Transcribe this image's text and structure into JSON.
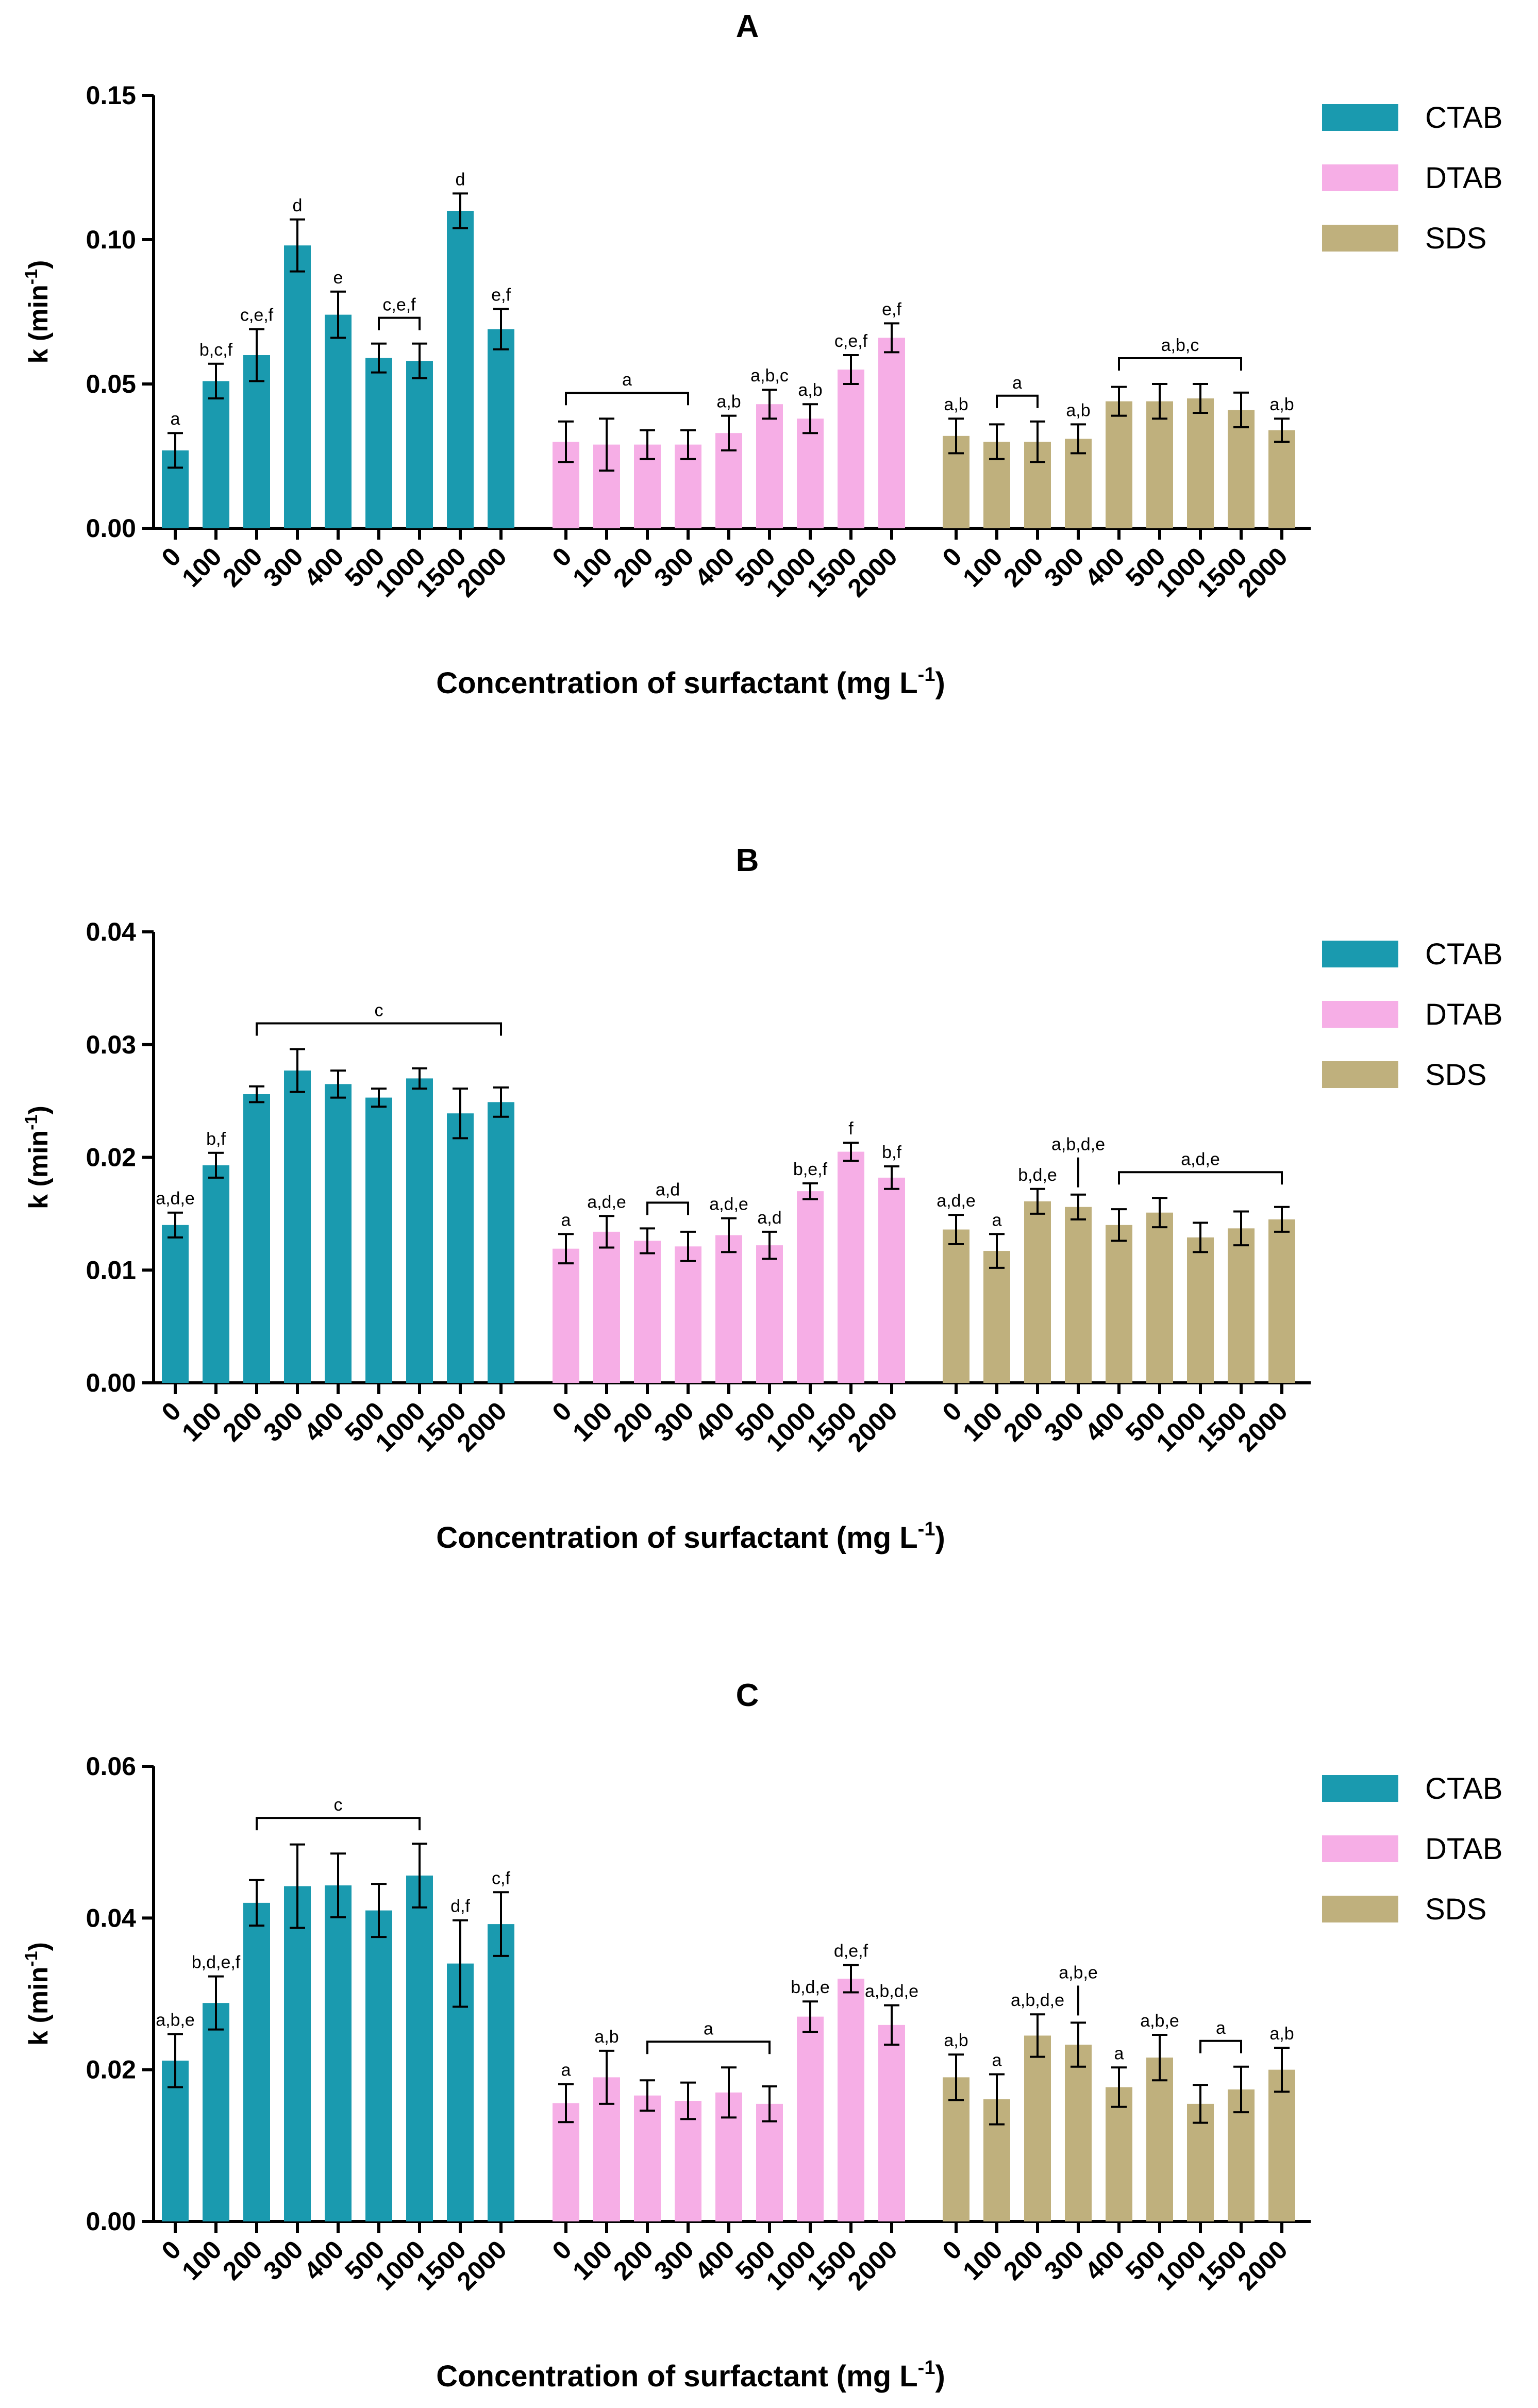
{
  "colors": {
    "CTAB": "#1a9aaf",
    "DTAB": "#f6aee6",
    "SDS": "#bfb07d"
  },
  "chart_data": [
    {
      "type": "bar",
      "title": "A",
      "xlabel": "Concentration of surfactant (mg L",
      "xlabel_sup": "-1",
      "xlabel_close": ")",
      "ylabel": "k (min",
      "ylabel_sup": "-1",
      "ylabel_close": ")",
      "ylim": [
        0,
        0.15
      ],
      "yticks": [
        "0.00",
        "0.05",
        "0.10",
        "0.15"
      ],
      "categories": [
        "0",
        "100",
        "200",
        "300",
        "400",
        "500",
        "1000",
        "1500",
        "2000"
      ],
      "series": [
        {
          "name": "CTAB",
          "values": [
            0.027,
            0.051,
            0.06,
            0.098,
            0.074,
            0.059,
            0.058,
            0.11,
            0.069
          ],
          "errors": [
            0.006,
            0.006,
            0.009,
            0.009,
            0.008,
            0.005,
            0.006,
            0.006,
            0.007
          ],
          "labels": [
            "a",
            "b,c,f",
            "c,e,f",
            "d",
            "e",
            "",
            "",
            "d",
            "e,f"
          ]
        },
        {
          "name": "DTAB",
          "values": [
            0.03,
            0.029,
            0.029,
            0.029,
            0.033,
            0.043,
            0.038,
            0.055,
            0.066
          ],
          "errors": [
            0.007,
            0.009,
            0.005,
            0.005,
            0.006,
            0.005,
            0.005,
            0.005,
            0.005
          ],
          "labels": [
            "",
            "",
            "",
            "",
            "a,b",
            "a,b,c",
            "a,b",
            "c,e,f",
            "e,f"
          ]
        },
        {
          "name": "SDS",
          "values": [
            0.032,
            0.03,
            0.03,
            0.031,
            0.044,
            0.044,
            0.045,
            0.041,
            0.034
          ],
          "errors": [
            0.006,
            0.006,
            0.007,
            0.005,
            0.005,
            0.006,
            0.005,
            0.006,
            0.004
          ],
          "labels": [
            "a,b",
            "",
            "",
            "a,b",
            "",
            "",
            "",
            "",
            "a,b"
          ]
        }
      ],
      "brackets": [
        {
          "series": 0,
          "from": 5,
          "to": 6,
          "label": "c,e,f"
        },
        {
          "series": 1,
          "from": 0,
          "to": 3,
          "label": "a"
        },
        {
          "series": 2,
          "from": 1,
          "to": 2,
          "label": "a"
        },
        {
          "series": 2,
          "from": 4,
          "to": 7,
          "label": "a,b,c"
        }
      ],
      "pointers": []
    },
    {
      "type": "bar",
      "title": "B",
      "xlabel": "Concentration of surfactant (mg L",
      "xlabel_sup": "-1",
      "xlabel_close": ")",
      "ylabel": "k (min",
      "ylabel_sup": "-1",
      "ylabel_close": ")",
      "ylim": [
        0,
        0.04
      ],
      "yticks": [
        "0.00",
        "0.01",
        "0.02",
        "0.03",
        "0.04"
      ],
      "categories": [
        "0",
        "100",
        "200",
        "300",
        "400",
        "500",
        "1000",
        "1500",
        "2000"
      ],
      "series": [
        {
          "name": "CTAB",
          "values": [
            0.014,
            0.0193,
            0.0256,
            0.0277,
            0.0265,
            0.0253,
            0.027,
            0.0239,
            0.0249
          ],
          "errors": [
            0.0011,
            0.0011,
            0.0007,
            0.0019,
            0.0012,
            0.0008,
            0.0009,
            0.0022,
            0.0013
          ],
          "labels": [
            "a,d,e",
            "b,f",
            "",
            "",
            "",
            "",
            "",
            "",
            ""
          ]
        },
        {
          "name": "DTAB",
          "values": [
            0.0119,
            0.0134,
            0.0126,
            0.0121,
            0.0131,
            0.0122,
            0.017,
            0.0205,
            0.0182
          ],
          "errors": [
            0.0013,
            0.0014,
            0.0011,
            0.0013,
            0.0015,
            0.0012,
            0.0007,
            0.0008,
            0.001
          ],
          "labels": [
            "a",
            "a,d,e",
            "",
            "",
            "a,d,e",
            "a,d",
            "b,e,f",
            "f",
            "b,f"
          ]
        },
        {
          "name": "SDS",
          "values": [
            0.0136,
            0.0117,
            0.0161,
            0.0156,
            0.014,
            0.0151,
            0.0129,
            0.0137,
            0.0145
          ],
          "errors": [
            0.0013,
            0.0015,
            0.0011,
            0.0011,
            0.0014,
            0.0013,
            0.0013,
            0.0015,
            0.0011
          ],
          "labels": [
            "a,d,e",
            "a",
            "b,d,e",
            "",
            "",
            "",
            "",
            "",
            ""
          ]
        }
      ],
      "brackets": [
        {
          "series": 0,
          "from": 2,
          "to": 8,
          "label": "c"
        },
        {
          "series": 1,
          "from": 2,
          "to": 3,
          "label": "a,d"
        },
        {
          "series": 2,
          "from": 4,
          "to": 8,
          "label": "a,d,e"
        }
      ],
      "pointers": [
        {
          "series": 2,
          "index": 3,
          "label": "a,b,d,e"
        }
      ]
    },
    {
      "type": "bar",
      "title": "C",
      "xlabel": "Concentration of surfactant (mg L",
      "xlabel_sup": "-1",
      "xlabel_close": ")",
      "ylabel": "k (min",
      "ylabel_sup": "-1",
      "ylabel_close": ")",
      "ylim": [
        0,
        0.06
      ],
      "yticks": [
        "0.00",
        "0.02",
        "0.04",
        "0.06"
      ],
      "categories": [
        "0",
        "100",
        "200",
        "300",
        "400",
        "500",
        "1000",
        "1500",
        "2000"
      ],
      "series": [
        {
          "name": "CTAB",
          "values": [
            0.0212,
            0.0288,
            0.042,
            0.0442,
            0.0443,
            0.041,
            0.0456,
            0.034,
            0.0392
          ],
          "errors": [
            0.0035,
            0.0035,
            0.003,
            0.0055,
            0.0042,
            0.0035,
            0.0042,
            0.0057,
            0.0042
          ],
          "labels": [
            "a,b,e",
            "b,d,e,f",
            "",
            "",
            "",
            "",
            "",
            "d,f",
            "c,f"
          ]
        },
        {
          "name": "DTAB",
          "values": [
            0.0156,
            0.019,
            0.0166,
            0.0159,
            0.017,
            0.0155,
            0.027,
            0.032,
            0.0259
          ],
          "errors": [
            0.0025,
            0.0035,
            0.002,
            0.0024,
            0.0033,
            0.0023,
            0.002,
            0.0018,
            0.0026
          ],
          "labels": [
            "a",
            "a,b",
            "",
            "",
            "",
            "",
            "b,d,e",
            "d,e,f",
            "a,b,d,e"
          ]
        },
        {
          "name": "SDS",
          "values": [
            0.019,
            0.0161,
            0.0245,
            0.0233,
            0.0177,
            0.0216,
            0.0155,
            0.0174,
            0.02
          ],
          "errors": [
            0.003,
            0.0033,
            0.0028,
            0.0029,
            0.0026,
            0.003,
            0.0025,
            0.003,
            0.0029
          ],
          "labels": [
            "a,b",
            "a",
            "a,b,d,e",
            "",
            "a",
            "a,b,e",
            "",
            "",
            "a,b"
          ]
        }
      ],
      "brackets": [
        {
          "series": 0,
          "from": 2,
          "to": 6,
          "label": "c"
        },
        {
          "series": 1,
          "from": 2,
          "to": 5,
          "label": "a"
        },
        {
          "series": 2,
          "from": 6,
          "to": 7,
          "label": "a"
        }
      ],
      "pointers": [
        {
          "series": 2,
          "index": 3,
          "label": "a,b,e"
        }
      ]
    }
  ]
}
